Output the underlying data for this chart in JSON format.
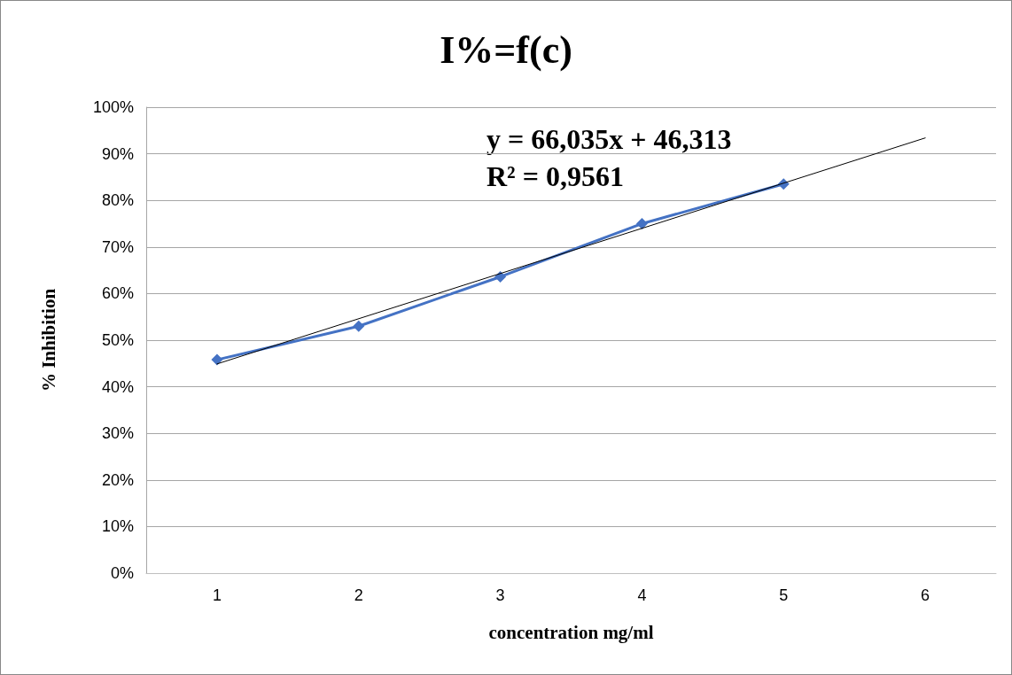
{
  "chart_data": {
    "type": "line",
    "title": "I%=f(c)",
    "xlabel": "concentration mg/ml",
    "ylabel": "% Inhibition",
    "x": [
      1,
      2,
      3,
      4,
      5
    ],
    "series": [
      {
        "color": "#4472c4",
        "values": [
          45.8,
          53.0,
          63.6,
          75.0,
          83.5
        ],
        "marker": "diamond"
      },
      {
        "type": "line",
        "x": [
          1,
          6
        ],
        "color": "#000000",
        "values": [
          44.9,
          93.4
        ],
        "marker": "none"
      }
    ],
    "xlim": [
      0.5,
      6.5
    ],
    "xticks": [
      1,
      2,
      3,
      4,
      5,
      6
    ],
    "ylim": [
      0,
      100
    ],
    "yticks": [
      {
        "value": 0,
        "label": "0%"
      },
      {
        "value": 10,
        "label": "10%"
      },
      {
        "value": 20,
        "label": "20%"
      },
      {
        "value": 30,
        "label": "30%"
      },
      {
        "value": 40,
        "label": "40%"
      },
      {
        "value": 50,
        "label": "50%"
      },
      {
        "value": 60,
        "label": "60%"
      },
      {
        "value": 70,
        "label": "70%"
      },
      {
        "value": 80,
        "label": "80%"
      },
      {
        "value": 90,
        "label": "90%"
      },
      {
        "value": 100,
        "label": "100%"
      }
    ],
    "grid": "y",
    "annotations": [
      "y = 66,035x + 46,313",
      "R² = 0,9561"
    ]
  }
}
